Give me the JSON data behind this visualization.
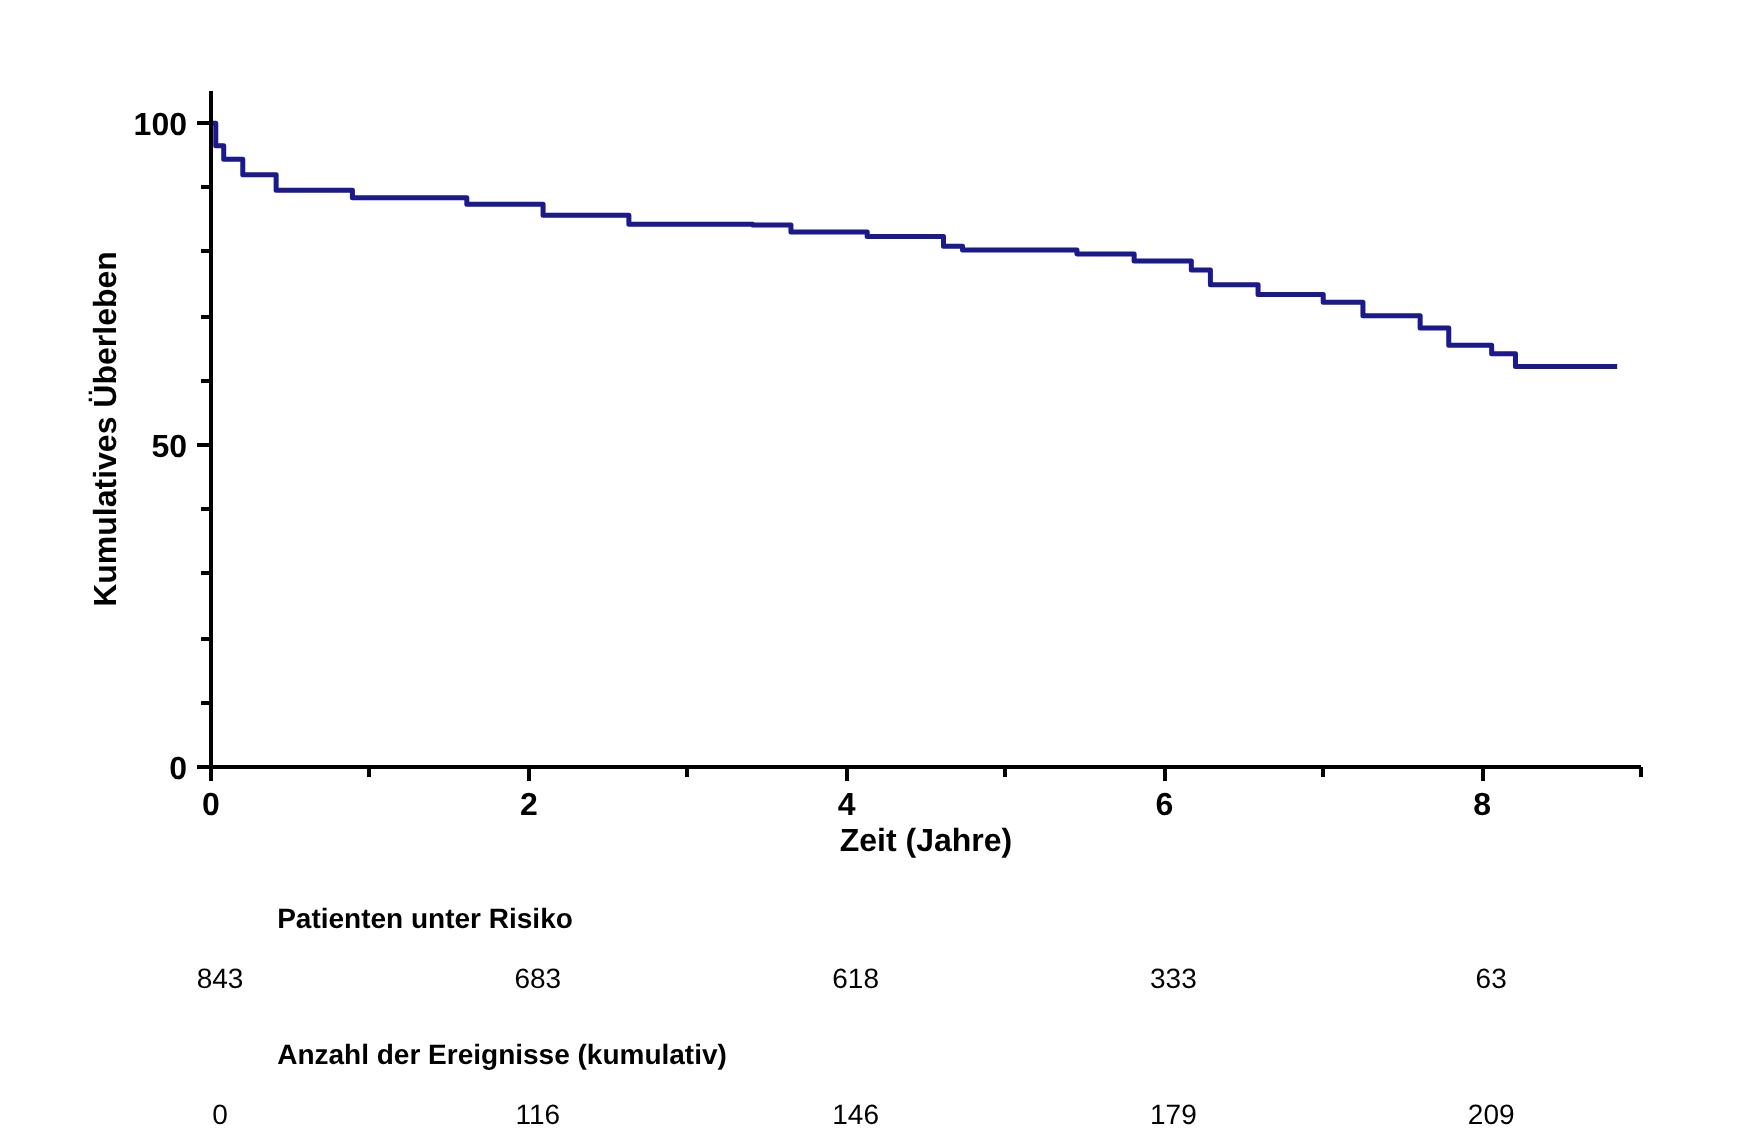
{
  "chart_data": {
    "type": "step",
    "xlabel": "Zeit (Jahre)",
    "ylabel": "Kumulatives Überleben",
    "xlim": [
      0,
      9
    ],
    "ylim": [
      0,
      105
    ],
    "xticks": [
      0,
      2,
      4,
      6,
      8,
      {
        "value": 1,
        "label": null
      },
      {
        "value": 3,
        "label": null
      },
      {
        "value": 5,
        "label": null
      },
      {
        "value": 7,
        "label": null
      },
      {
        "value": 9,
        "label": null
      }
    ],
    "yticks": [
      0,
      50,
      100,
      {
        "value": 10,
        "label": null
      },
      {
        "value": 20,
        "label": null
      },
      {
        "value": 30,
        "label": null
      },
      {
        "value": 40,
        "label": null
      },
      {
        "value": 60,
        "label": null
      },
      {
        "value": 70,
        "label": null
      },
      {
        "value": 80,
        "label": null
      },
      {
        "value": 90,
        "label": null
      }
    ],
    "grid": false,
    "line_style": "solid",
    "marker": "none",
    "series": [
      {
        "color": "#1a1a8c",
        "x": [
          0,
          0.03,
          0.08,
          0.2,
          0.41,
          0.89,
          1.43,
          1.61,
          2.09,
          2.39,
          2.63,
          3.41,
          3.65,
          4.13,
          4.61,
          4.73,
          5.45,
          5.81,
          6.17,
          6.29,
          6.59,
          7.0,
          7.25,
          7.52,
          7.61,
          7.79,
          8.0,
          8.06,
          8.21,
          8.85
        ],
        "values": [
          100,
          96.5,
          94.4,
          92,
          89.6,
          88.4,
          88.4,
          87.4,
          85.7,
          85.7,
          84.3,
          84.2,
          83.1,
          82.4,
          80.9,
          80.3,
          79.7,
          78.6,
          77.2,
          74.9,
          73.4,
          72.2,
          70.1,
          70.1,
          68.2,
          65.5,
          65.5,
          64.2,
          62.2,
          62.2
        ]
      }
    ],
    "annotations": [
      "Patienten unter Risiko",
      "843",
      "683",
      "618",
      "333",
      "63",
      "Anzahl der Ereignisse (kumulativ)",
      "0",
      "116",
      "146",
      "179",
      "209"
    ]
  }
}
